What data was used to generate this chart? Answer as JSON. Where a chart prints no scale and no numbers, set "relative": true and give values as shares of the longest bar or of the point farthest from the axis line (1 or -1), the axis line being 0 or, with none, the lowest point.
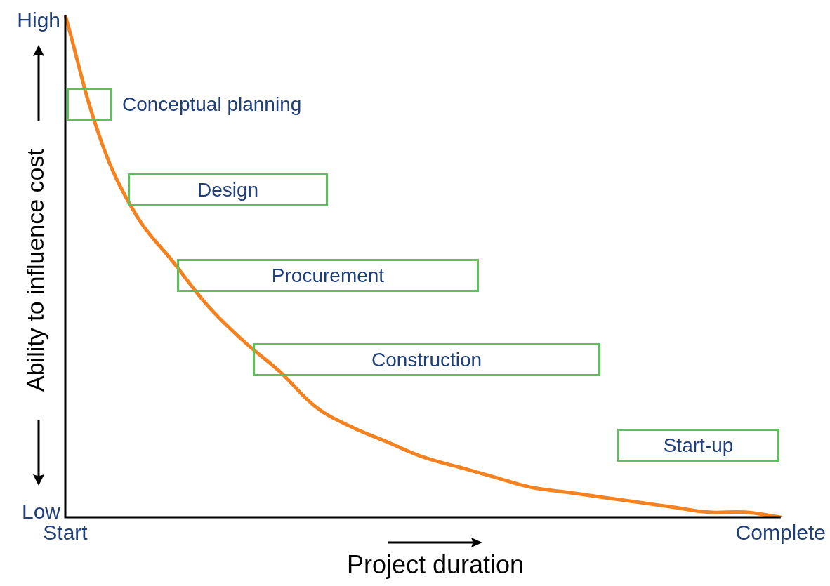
{
  "chart_data": {
    "type": "line",
    "relative": true,
    "categories": [
      "Start",
      null,
      null,
      null,
      null,
      null,
      null,
      null,
      null,
      null,
      null,
      null,
      null,
      null,
      null,
      null,
      null,
      null,
      null,
      null,
      "Complete"
    ],
    "series": [
      {
        "color": "#f5821f",
        "values": [
          1,
          0.75,
          0.6,
          0.51,
          0.42,
          0.35,
          0.29,
          0.22,
          0.18,
          0.15,
          0.12,
          0.1,
          0.08,
          0.06,
          0.05,
          0.04,
          0.03,
          0.02,
          0.01,
          0.01,
          0
        ]
      }
    ],
    "xlabel": "Project duration",
    "ylabel": "Ability to influence cost",
    "annotations": [
      "High",
      "Low",
      "Conceptual planning",
      "Design",
      "Procurement",
      "Construction",
      "Start-up"
    ],
    "grid": false,
    "legend": false,
    "marker": "none",
    "line_style": "solid"
  }
}
